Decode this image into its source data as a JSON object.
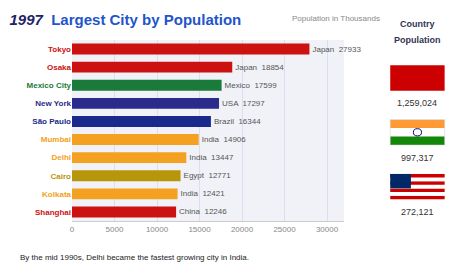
{
  "chart_data": {
    "type": "bar",
    "orientation": "horizontal",
    "title": "Largest City by Population",
    "subtitle": "Population in Thousands",
    "categories": [
      "Tokyo",
      "Osaka",
      "Mexico City",
      "New York",
      "São Paulo",
      "Mumbai",
      "Delhi",
      "Cairo",
      "Kolkata",
      "Shanghai"
    ],
    "values": [
      27933,
      18854,
      17599,
      17297,
      16344,
      14906,
      13447,
      12771,
      12421,
      12246
    ],
    "value_labels": [
      "Japan  27933",
      "Japan  18854",
      "Mexico  17599",
      "USA  17297",
      "Brazil  16344",
      "India  14906",
      "India  13447",
      "Egypt  12771",
      "India  12421",
      "China  12246"
    ],
    "data_labels": true,
    "colors": [
      "#cc1111",
      "#cc1111",
      "#1a7a3a",
      "#2b2b8c",
      "#1a2a8c",
      "#f4a020",
      "#f4a020",
      "#b8960c",
      "#f4a020",
      "#cc1111"
    ],
    "xlim": [
      0,
      32000
    ],
    "xticks": [
      0,
      5000,
      10000,
      15000,
      20000,
      25000,
      30000
    ],
    "grid": true,
    "annotations": [
      "1997",
      "Country",
      "Population",
      "1,259,024",
      "997,317",
      "272,121",
      "By the mid 1990s, Delhi became the fastest growing city in India."
    ]
  }
}
